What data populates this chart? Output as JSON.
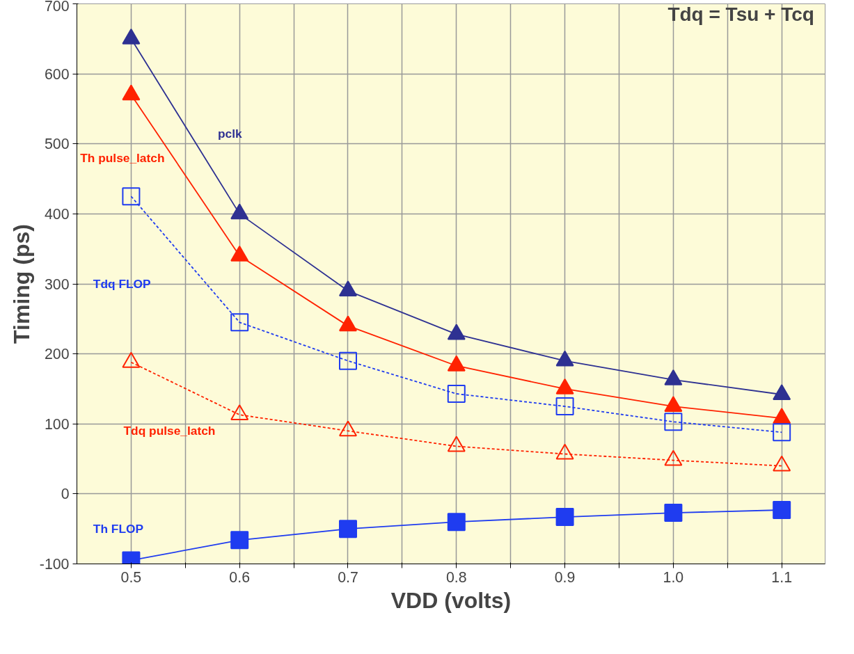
{
  "chart_data": {
    "type": "line",
    "xlabel": "VDD (volts)",
    "ylabel": "Timing (ps)",
    "x": [
      0.5,
      0.6,
      0.7,
      0.8,
      0.9,
      1.0,
      1.1
    ],
    "series": [
      {
        "name": "pclk",
        "color": "#2e3192",
        "marker": "triangle",
        "line_style": "solid",
        "values": [
          650,
          400,
          290,
          228,
          190,
          163,
          142
        ]
      },
      {
        "name": "Th pulse_latch",
        "color": "#ff2200",
        "marker": "triangle",
        "line_style": "solid",
        "values": [
          570,
          340,
          240,
          183,
          150,
          125,
          108
        ]
      },
      {
        "name": "Tdq FLOP",
        "color": "#1f3cf0",
        "marker": "square",
        "line_style": "dashed",
        "values": [
          425,
          245,
          190,
          143,
          125,
          103,
          88
        ]
      },
      {
        "name": "Tdq pulse_latch",
        "color": "#ff2200",
        "marker": "triangle",
        "line_style": "dashed",
        "values": [
          188,
          113,
          90,
          68,
          57,
          48,
          40
        ]
      },
      {
        "name": "Th FLOP",
        "color": "#1f3cf0",
        "marker": "square",
        "line_style": "solid",
        "values": [
          -95,
          -66,
          -50,
          -40,
          -33,
          -27,
          -23
        ]
      }
    ],
    "annotations": [
      "Tdq = Tsu + Tcq"
    ],
    "xlim": [
      0.45,
      1.14
    ],
    "ylim": [
      -100,
      700
    ],
    "xticks": [
      {
        "value": 0.5,
        "label": "0.5"
      },
      {
        "value": 0.55,
        "label": null
      },
      {
        "value": 0.6,
        "label": "0.6"
      },
      {
        "value": 0.65,
        "label": null
      },
      {
        "value": 0.7,
        "label": "0.7"
      },
      {
        "value": 0.75,
        "label": null
      },
      {
        "value": 0.8,
        "label": "0.8"
      },
      {
        "value": 0.85,
        "label": null
      },
      {
        "value": 0.9,
        "label": "0.9"
      },
      {
        "value": 0.95,
        "label": null
      },
      {
        "value": 1.0,
        "label": "1.0"
      },
      {
        "value": 1.05,
        "label": null
      },
      {
        "value": 1.1,
        "label": "1.1"
      }
    ],
    "yticks": [
      -100,
      0,
      100,
      200,
      300,
      400,
      500,
      600,
      700
    ],
    "grid": true,
    "legend": false
  }
}
